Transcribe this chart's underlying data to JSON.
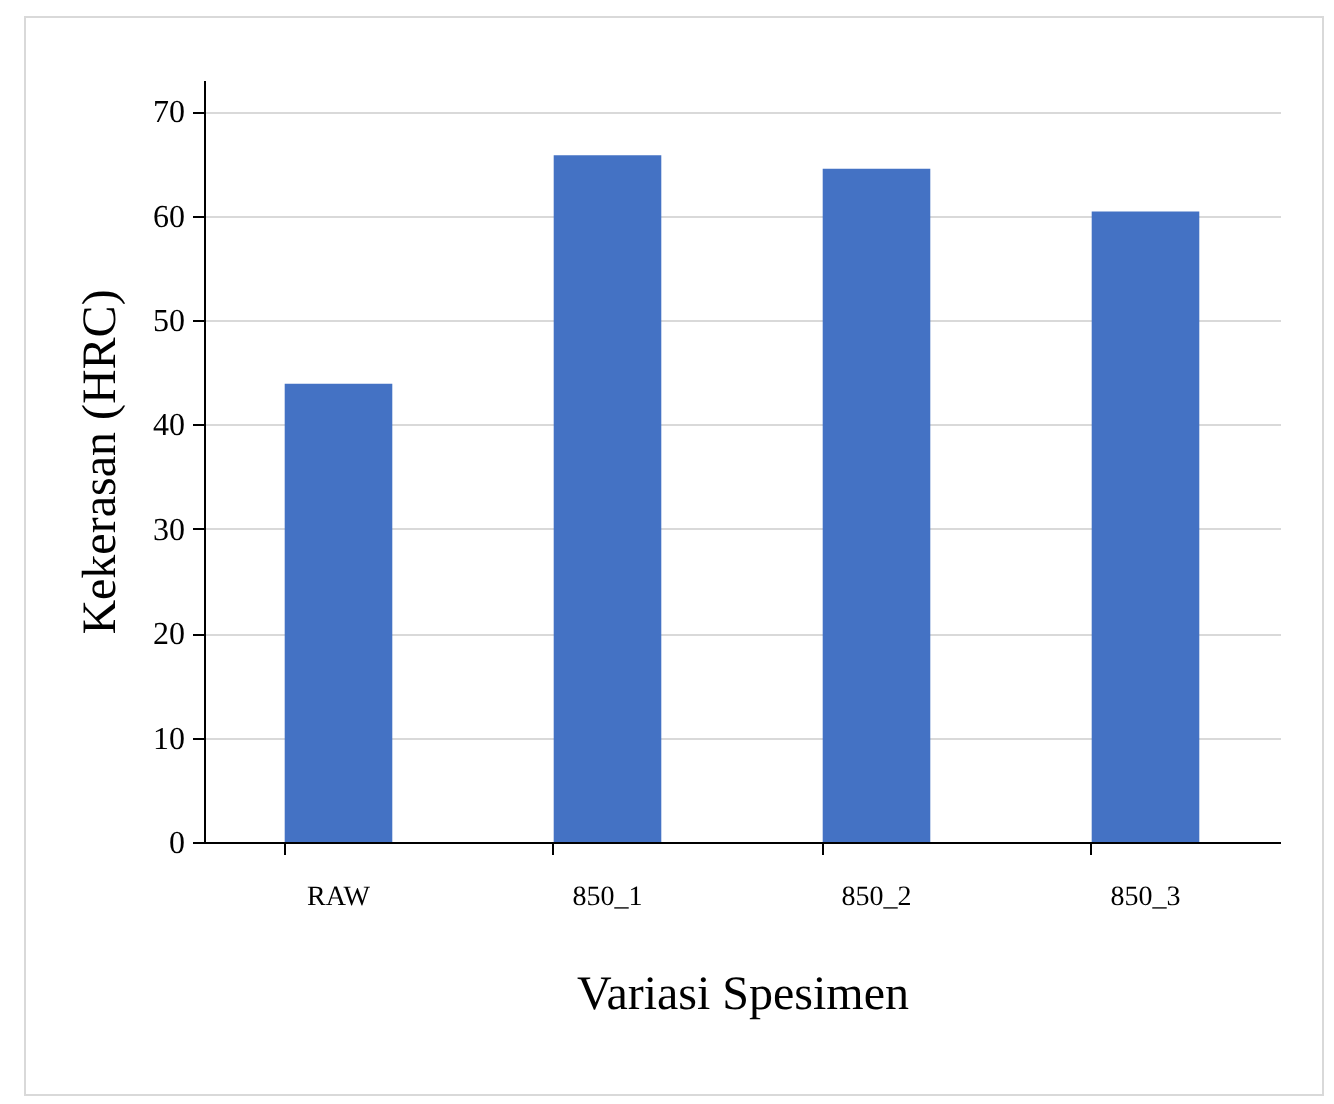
{
  "chart_data": {
    "type": "bar",
    "xlabel": "Variasi Spesimen",
    "ylabel": "Kekerasan (HRC)",
    "categories": [
      "RAW",
      "850_1",
      "850_2",
      "850_3"
    ],
    "values": [
      43.9,
      65.8,
      64.5,
      60.4
    ],
    "color": "#4472c4",
    "ylim": [
      0,
      73
    ],
    "yticks": [
      0,
      10,
      20,
      30,
      40,
      50,
      60,
      70
    ],
    "grid": "y"
  }
}
